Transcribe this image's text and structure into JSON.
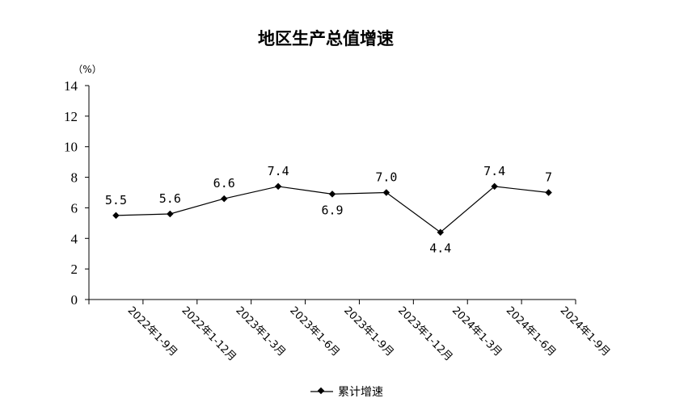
{
  "chart_data": {
    "type": "line",
    "title": "地区生产总值增速",
    "ylabel": "（%）",
    "ylim": [
      0,
      14
    ],
    "yticks": [
      "0",
      "2",
      "4",
      "6",
      "8",
      "10",
      "12",
      "14"
    ],
    "categories": [
      "2022年1-9月",
      "2022年1-12月",
      "2023年1-3月",
      "2023年1-6月",
      "2023年1-9月",
      "2023年1-12月",
      "2024年1-3月",
      "2024年1-6月",
      "2024年1-9月"
    ],
    "series": [
      {
        "name": "累计增速",
        "values": [
          5.5,
          5.6,
          6.6,
          7.4,
          6.9,
          7.0,
          4.4,
          7.4,
          7
        ],
        "labels": [
          "5.5",
          "5.6",
          "6.6",
          "7.4",
          "6.9",
          "7.0",
          "4.4",
          "7.4",
          "7"
        ],
        "color": "#000000"
      }
    ],
    "grid": false,
    "legend_position": "bottom"
  }
}
